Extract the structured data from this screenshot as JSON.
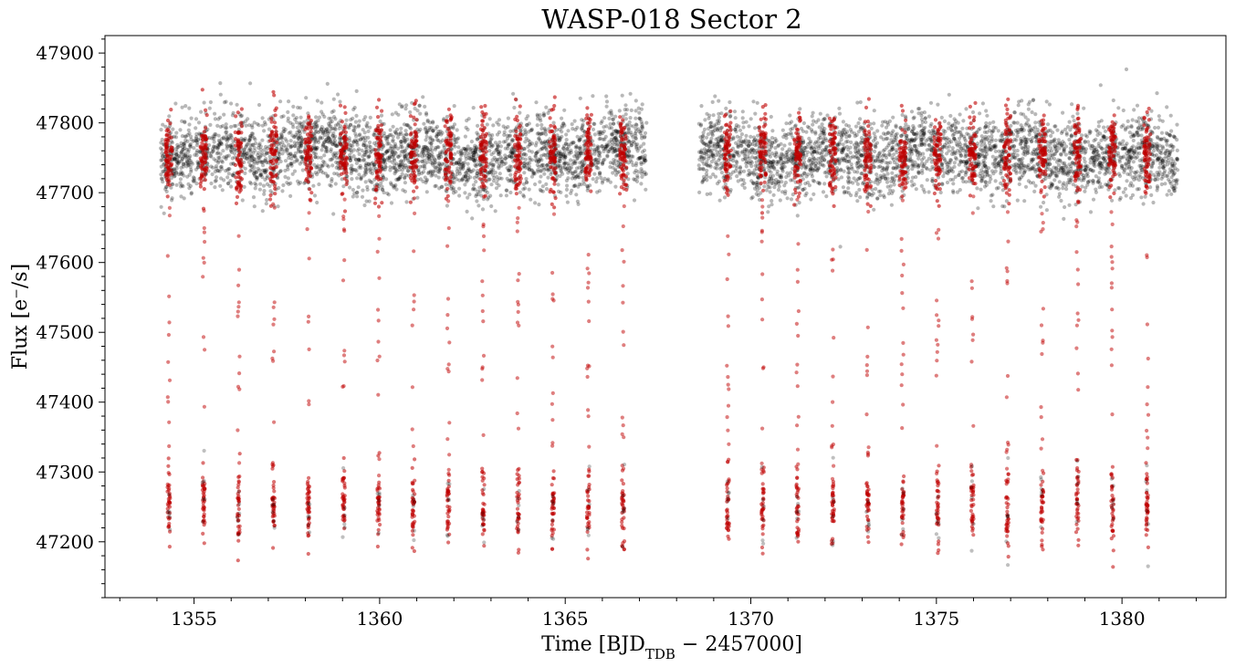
{
  "chart_data": {
    "type": "scatter",
    "title": "WASP-018 Sector 2",
    "xlabel": {
      "prefix": "Time [BJD",
      "subscript": "TDB",
      "suffix": " − 2457000]"
    },
    "ylabel": "Flux [e⁻/s]",
    "xlim": [
      1352.6,
      1382.8
    ],
    "ylim": [
      47120,
      47925
    ],
    "x_ticks": [
      1355,
      1360,
      1365,
      1370,
      1375,
      1380
    ],
    "y_ticks": [
      47200,
      47300,
      47400,
      47500,
      47600,
      47700,
      47800,
      47900
    ],
    "colors": {
      "out_of_transit": "#000000",
      "in_transit": "#c00000"
    },
    "out_of_transit": {
      "segments": [
        [
          1354.1,
          1367.2
        ],
        [
          1368.6,
          1381.5
        ]
      ],
      "flux_median": 47755,
      "flux_scatter": 28
    },
    "transit": {
      "period": 0.9414,
      "epochs": [
        1354.32,
        1355.26,
        1356.2,
        1357.14,
        1358.08,
        1359.03,
        1359.97,
        1360.91,
        1361.85,
        1362.79,
        1363.73,
        1364.67,
        1365.62,
        1366.56,
        1369.38,
        1370.32,
        1371.26,
        1372.21,
        1373.15,
        1374.09,
        1375.03,
        1375.97,
        1376.91,
        1377.85,
        1378.8,
        1379.74,
        1380.68
      ],
      "depth_flux": 47250,
      "bottom_scatter": 28
    },
    "grid": false,
    "legend": "none"
  }
}
